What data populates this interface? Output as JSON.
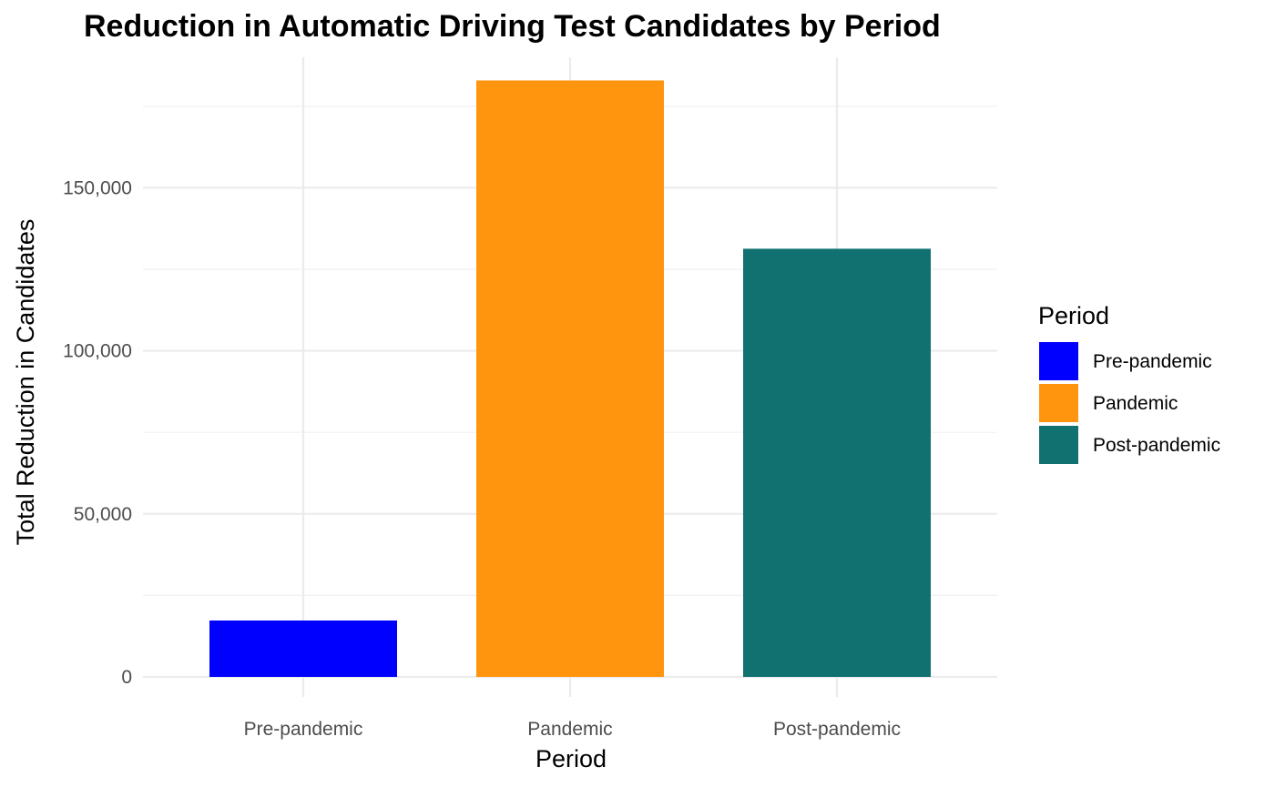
{
  "chart_data": {
    "type": "bar",
    "title": "Reduction in Automatic Driving Test Candidates by Period",
    "xlabel": "Period",
    "ylabel": "Total Reduction in Candidates",
    "categories": [
      "Pre-pandemic",
      "Pandemic",
      "Post-pandemic"
    ],
    "values": [
      17300,
      182900,
      131300
    ],
    "colors": [
      "#0000FF",
      "#FF950E",
      "#117070"
    ],
    "ylim": [
      0,
      190000
    ],
    "yticks": [
      0,
      50000,
      100000,
      150000
    ],
    "ytick_labels": [
      "0",
      "50,000",
      "100,000",
      "150,000"
    ],
    "grid": true,
    "legend": {
      "title": "Period",
      "placement": "right",
      "entries": [
        "Pre-pandemic",
        "Pandemic",
        "Post-pandemic"
      ]
    }
  }
}
